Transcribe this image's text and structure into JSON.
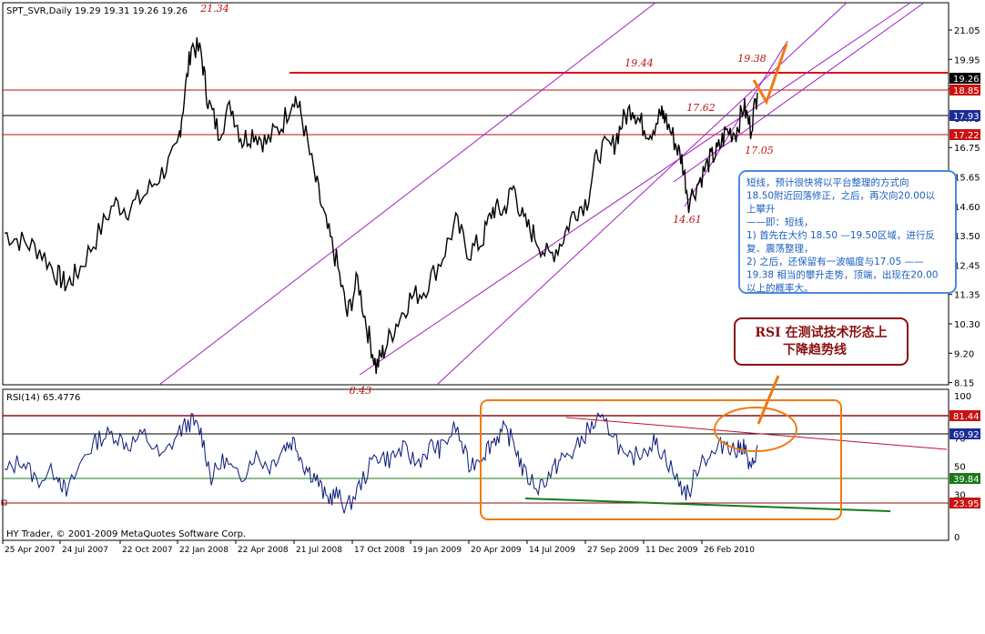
{
  "chart_data": [
    {
      "type": "line",
      "title": "SPT_SVR,Daily",
      "ohlc_last": [
        "19.29",
        "19.31",
        "19.26",
        "19.26"
      ],
      "x_dates": [
        "25 Apr 2007",
        "24 Jul 2007",
        "22 Oct 2007",
        "22 Jan 2008",
        "22 Apr 2008",
        "21 Jul 2008",
        "17 Oct 2008",
        "19 Jan 2009",
        "20 Apr 2009",
        "14 Jul 2009",
        "27 Sep 2009",
        "11 Dec 2009",
        "26 Feb 2010"
      ],
      "ylim": [
        7.5,
        22.0
      ],
      "y_ticks": [
        "21.05",
        "19.95",
        "18.85",
        "17.75",
        "16.75",
        "15.65",
        "14.60",
        "13.50",
        "12.45",
        "11.35",
        "10.30",
        "9.20",
        "8.15"
      ],
      "series": [
        {
          "color": "#000000",
          "points": [
            [
              "2007-04-25",
              13.6
            ],
            [
              "2007-05-20",
              13.3
            ],
            [
              "2007-06-15",
              13.0
            ],
            [
              "2007-07-10",
              12.1
            ],
            [
              "2007-07-24",
              11.7
            ],
            [
              "2007-08-10",
              12.2
            ],
            [
              "2007-09-05",
              13.4
            ],
            [
              "2007-10-01",
              14.7
            ],
            [
              "2007-10-22",
              14.5
            ],
            [
              "2007-11-15",
              15.0
            ],
            [
              "2007-12-10",
              15.8
            ],
            [
              "2008-01-01",
              16.6
            ],
            [
              "2008-01-10",
              18.2
            ],
            [
              "2008-01-22",
              20.5
            ],
            [
              "2008-02-05",
              20.2
            ],
            [
              "2008-02-15",
              18.4
            ],
            [
              "2008-03-01",
              17.3
            ],
            [
              "2008-03-20",
              18.2
            ],
            [
              "2008-04-05",
              17.0
            ],
            [
              "2008-04-22",
              17.3
            ],
            [
              "2008-05-10",
              16.9
            ],
            [
              "2008-06-01",
              17.5
            ],
            [
              "2008-06-20",
              18.6
            ],
            [
              "2008-07-01",
              17.8
            ],
            [
              "2008-07-21",
              15.5
            ],
            [
              "2008-08-05",
              13.9
            ],
            [
              "2008-08-20",
              12.6
            ],
            [
              "2008-09-05",
              10.6
            ],
            [
              "2008-09-20",
              11.9
            ],
            [
              "2008-10-05",
              10.0
            ],
            [
              "2008-10-17",
              8.7
            ],
            [
              "2008-10-28",
              9.3
            ],
            [
              "2008-11-15",
              10.3
            ],
            [
              "2008-12-05",
              11.2
            ],
            [
              "2008-12-25",
              11.5
            ],
            [
              "2009-01-19",
              12.6
            ],
            [
              "2009-02-10",
              14.0
            ],
            [
              "2009-03-01",
              12.9
            ],
            [
              "2009-03-20",
              13.3
            ],
            [
              "2009-04-05",
              14.5
            ],
            [
              "2009-04-20",
              14.4
            ],
            [
              "2009-05-05",
              15.3
            ],
            [
              "2009-05-20",
              14.0
            ],
            [
              "2009-06-05",
              13.5
            ],
            [
              "2009-06-25",
              12.7
            ],
            [
              "2009-07-14",
              13.3
            ],
            [
              "2009-08-01",
              14.4
            ],
            [
              "2009-08-20",
              14.8
            ],
            [
              "2009-09-05",
              16.6
            ],
            [
              "2009-09-27",
              16.8
            ],
            [
              "2009-10-10",
              17.6
            ],
            [
              "2009-10-25",
              18.2
            ],
            [
              "2009-11-05",
              17.6
            ],
            [
              "2009-11-20",
              17.3
            ],
            [
              "2009-12-05",
              17.9
            ],
            [
              "2009-12-11",
              17.8
            ],
            [
              "2009-12-25",
              17.0
            ],
            [
              "2010-01-05",
              16.3
            ],
            [
              "2010-01-15",
              14.8
            ],
            [
              "2010-02-01",
              15.6
            ],
            [
              "2010-02-15",
              16.3
            ],
            [
              "2010-02-26",
              16.6
            ],
            [
              "2010-03-10",
              17.3
            ],
            [
              "2010-03-25",
              17.3
            ],
            [
              "2010-04-05",
              18.2
            ],
            [
              "2010-04-15",
              17.4
            ],
            [
              "2010-04-25",
              18.7
            ]
          ]
        }
      ]
    },
    {
      "type": "line",
      "title": "RSI(14) 65.4776",
      "x_dates": [
        "25 Apr 2007",
        "24 Jul 2007",
        "22 Oct 2007",
        "22 Jan 2008",
        "22 Apr 2008",
        "21 Jul 2008",
        "17 Oct 2008",
        "19 Jan 2009",
        "20 Apr 2009",
        "14 Jul 2009",
        "27 Sep 2009",
        "11 Dec 2009",
        "26 Feb 2010"
      ],
      "ylim": [
        0,
        100
      ],
      "y_ticks": [
        "100",
        "70",
        "50",
        "30",
        "0"
      ],
      "series": [
        {
          "color": "#0a1a7a",
          "points": [
            [
              "2007-04-25",
              45
            ],
            [
              "2007-05-20",
              55
            ],
            [
              "2007-06-10",
              40
            ],
            [
              "2007-07-10",
              47
            ],
            [
              "2007-07-24",
              30
            ],
            [
              "2007-08-20",
              58
            ],
            [
              "2007-09-10",
              70
            ],
            [
              "2007-10-01",
              73
            ],
            [
              "2007-10-22",
              65
            ],
            [
              "2007-11-15",
              72
            ],
            [
              "2007-12-10",
              55
            ],
            [
              "2008-01-05",
              75
            ],
            [
              "2008-01-22",
              82
            ],
            [
              "2008-02-05",
              74
            ],
            [
              "2008-02-20",
              42
            ],
            [
              "2008-03-10",
              55
            ],
            [
              "2008-04-01",
              40
            ],
            [
              "2008-04-22",
              58
            ],
            [
              "2008-05-15",
              50
            ],
            [
              "2008-06-05",
              64
            ],
            [
              "2008-06-20",
              68
            ],
            [
              "2008-07-05",
              50
            ],
            [
              "2008-07-21",
              42
            ],
            [
              "2008-08-05",
              27
            ],
            [
              "2008-08-20",
              30
            ],
            [
              "2008-09-05",
              20
            ],
            [
              "2008-09-25",
              38
            ],
            [
              "2008-10-17",
              58
            ],
            [
              "2008-11-05",
              55
            ],
            [
              "2008-11-25",
              62
            ],
            [
              "2008-12-15",
              52
            ],
            [
              "2009-01-05",
              64
            ],
            [
              "2009-01-19",
              62
            ],
            [
              "2009-02-10",
              78
            ],
            [
              "2009-03-01",
              50
            ],
            [
              "2009-03-20",
              58
            ],
            [
              "2009-04-05",
              68
            ],
            [
              "2009-04-20",
              75
            ],
            [
              "2009-05-05",
              68
            ],
            [
              "2009-05-20",
              45
            ],
            [
              "2009-06-10",
              35
            ],
            [
              "2009-07-01",
              47
            ],
            [
              "2009-07-14",
              55
            ],
            [
              "2009-08-01",
              60
            ],
            [
              "2009-08-20",
              75
            ],
            [
              "2009-09-05",
              82
            ],
            [
              "2009-09-27",
              75
            ],
            [
              "2009-10-15",
              52
            ],
            [
              "2009-11-05",
              60
            ],
            [
              "2009-11-25",
              67
            ],
            [
              "2009-12-11",
              58
            ],
            [
              "2010-01-01",
              37
            ],
            [
              "2010-01-15",
              30
            ],
            [
              "2010-02-01",
              55
            ],
            [
              "2010-02-20",
              58
            ],
            [
              "2010-03-10",
              68
            ],
            [
              "2010-03-25",
              60
            ],
            [
              "2010-04-05",
              66
            ],
            [
              "2010-04-15",
              45
            ],
            [
              "2010-04-25",
              65
            ]
          ]
        }
      ]
    }
  ],
  "header": {
    "symbol": "SPT_SVR,Daily",
    "ohlc": "19.29 19.31 19.26 19.26"
  },
  "price_labels": {
    "high_2008": "21.34",
    "low_2008": "8.43",
    "peak_2009": "19.44",
    "peak_2010": "19.38",
    "low_2010": "14.61",
    "mid_2010": "17.62",
    "dip_2010": "17.05"
  },
  "right_badges": {
    "current": "19.26",
    "resistance": "18.85",
    "level_mid": "17.93",
    "support": "17.22",
    "rsi_top": "81.44",
    "rsi_value": "69.92",
    "rsi_mid": "39.84",
    "rsi_low": "23.95"
  },
  "rsi_panel": {
    "title": "RSI(14) 65.4776"
  },
  "annotation_box": {
    "lines": [
      "短线，预计很快将以平台整理的方式向",
      "18.50附近回落修正，之后，再次向20.00以",
      "上攀升",
      "——即：短线，",
      "1) 首先在大约 18.50 —19.50区域，进行反",
      "复、震荡整理，",
      "2) 之后，还保留有一波幅度与17.05 ——",
      "19.38 相当的攀升走势，顶端，出现在20.00",
      "以上的概率大。"
    ]
  },
  "rsi_callout": {
    "line1": "RSI 在测试技术形态上",
    "line2": "下降趋势线"
  },
  "footer": {
    "copyright": "HY Trader, © 2001-2009 MetaQuotes Software Corp."
  },
  "colors": {
    "price": "#000000",
    "rsi": "#0a1a7a",
    "channel": "#a020c0",
    "resistance": "#e01010",
    "callout_orange": "#f07a10",
    "box_blue": "#4a8ad8",
    "badge_red": "#cc1111",
    "badge_blue": "#1a2c9a",
    "badge_green": "#1a7a1a"
  }
}
